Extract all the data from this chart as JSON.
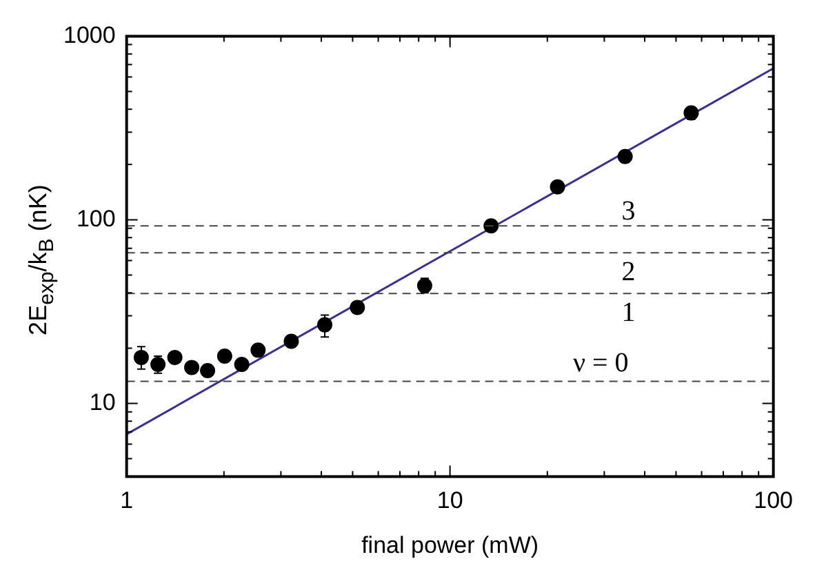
{
  "chart_data": {
    "type": "scatter",
    "xlabel": "final power (mW)",
    "ylabel": "2E$_{exp}$/k$_{B}$ (nK)",
    "log": "xy",
    "xlim": [
      1,
      100
    ],
    "ylim": [
      4,
      1000
    ],
    "xticks": [
      1,
      {
        "value": 2,
        "label": null
      },
      {
        "value": 3,
        "label": null
      },
      {
        "value": 4,
        "label": null
      },
      {
        "value": 5,
        "label": null
      },
      {
        "value": 6,
        "label": null
      },
      {
        "value": 7,
        "label": null
      },
      {
        "value": 8,
        "label": null
      },
      {
        "value": 9,
        "label": null
      },
      10,
      {
        "value": 20,
        "label": null
      },
      {
        "value": 30,
        "label": null
      },
      {
        "value": 40,
        "label": null
      },
      {
        "value": 50,
        "label": null
      },
      {
        "value": 60,
        "label": null
      },
      {
        "value": 70,
        "label": null
      },
      {
        "value": 80,
        "label": null
      },
      {
        "value": 90,
        "label": null
      },
      100
    ],
    "yticks": [
      {
        "value": 5,
        "label": null
      },
      {
        "value": 6,
        "label": null
      },
      {
        "value": 7,
        "label": null
      },
      {
        "value": 8,
        "label": null
      },
      {
        "value": 9,
        "label": null
      },
      10,
      {
        "value": 20,
        "label": null
      },
      {
        "value": 30,
        "label": null
      },
      {
        "value": 40,
        "label": null
      },
      {
        "value": 50,
        "label": null
      },
      {
        "value": 60,
        "label": null
      },
      {
        "value": 70,
        "label": null
      },
      {
        "value": 80,
        "label": null
      },
      {
        "value": 90,
        "label": null
      },
      100,
      {
        "value": 200,
        "label": null
      },
      {
        "value": 300,
        "label": null
      },
      {
        "value": 400,
        "label": null
      },
      {
        "value": 500,
        "label": null
      },
      {
        "value": 600,
        "label": null
      },
      {
        "value": 700,
        "label": null
      },
      {
        "value": 800,
        "label": null
      },
      {
        "value": 900,
        "label": null
      },
      1000
    ],
    "grid": false,
    "legend": false,
    "series": [
      {
        "marker": "circle",
        "color": "#000000",
        "x": [
          1.11,
          1.25,
          1.41,
          1.59,
          1.78,
          2.01,
          2.27,
          2.55,
          3.23,
          4.1,
          5.17,
          8.35,
          13.4,
          21.5,
          34.8,
          55.7
        ],
        "values": [
          17.8,
          16.3,
          17.8,
          15.7,
          15.1,
          18.1,
          16.3,
          19.5,
          21.8,
          26.8,
          33.3,
          43.8,
          92.7,
          151,
          221,
          382
        ],
        "errors": [
          [
            15.4,
            20.4
          ],
          [
            14.6,
            18.1
          ],
          null,
          null,
          null,
          null,
          null,
          null,
          null,
          [
            23.0,
            30.3
          ],
          null,
          [
            40,
            48
          ],
          null,
          null,
          null,
          [
            352,
            398
          ]
        ]
      },
      {
        "type": "line",
        "marker": "none",
        "color": "#3b2f8f",
        "x": [
          1,
          100
        ],
        "values": [
          6.8,
          668
        ]
      }
    ],
    "ref_lines": [
      {
        "axis": "y",
        "value": 92.7,
        "color": "#444444",
        "line_style": "dashed"
      },
      {
        "axis": "y",
        "value": 66.2,
        "color": "#444444",
        "line_style": "dashed"
      },
      {
        "axis": "y",
        "value": 39.7,
        "color": "#444444",
        "line_style": "dashed"
      },
      {
        "axis": "y",
        "value": 13.2,
        "color": "#444444",
        "line_style": "dashed"
      }
    ],
    "annotations": [
      "3",
      "2",
      "1",
      "ν = 0"
    ]
  }
}
